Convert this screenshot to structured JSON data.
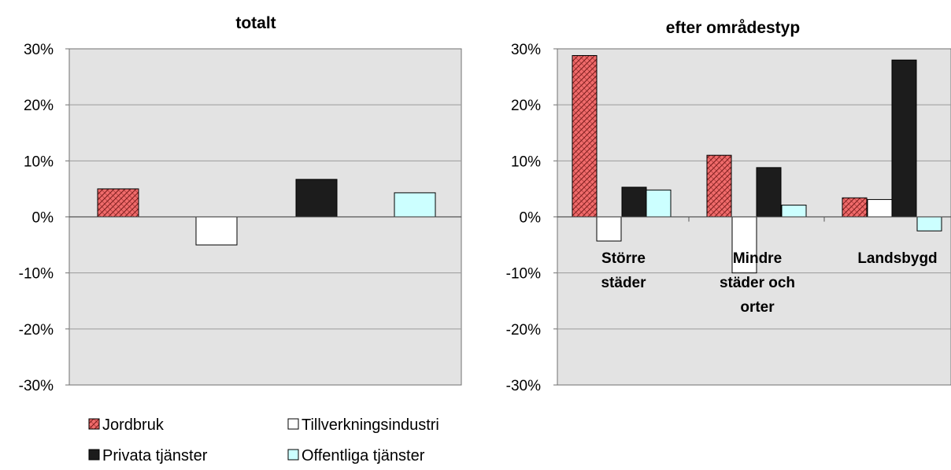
{
  "chart_data": [
    {
      "type": "bar",
      "title": "totalt",
      "categories": [
        ""
      ],
      "series": [
        {
          "name": "Jordbruk",
          "values": [
            5.0
          ]
        },
        {
          "name": "Tillverkningsindustri",
          "values": [
            -5.0
          ]
        },
        {
          "name": "Privata tjänster",
          "values": [
            6.7
          ]
        },
        {
          "name": "Offentliga tjänster",
          "values": [
            4.3
          ]
        }
      ],
      "ylim": [
        -30,
        30
      ],
      "yticks": [
        "30%",
        "20%",
        "10%",
        "0%",
        "-10%",
        "-20%",
        "-30%"
      ],
      "grid": true,
      "legend": "bottom"
    },
    {
      "type": "bar",
      "title": "efter områdestyp",
      "categories": [
        [
          "Större",
          "städer"
        ],
        [
          "Mindre",
          "städer och",
          "orter"
        ],
        [
          "Landsbygd"
        ]
      ],
      "series": [
        {
          "name": "Jordbruk",
          "values": [
            28.8,
            11.0,
            3.4
          ]
        },
        {
          "name": "Tillverkningsindustri",
          "values": [
            -4.3,
            -10.0,
            3.1
          ]
        },
        {
          "name": "Privata tjänster",
          "values": [
            5.3,
            8.8,
            28.0
          ]
        },
        {
          "name": "Offentliga tjänster",
          "values": [
            4.8,
            2.1,
            -2.5
          ]
        }
      ],
      "ylim": [
        -30,
        30
      ],
      "yticks": [
        "30%",
        "20%",
        "10%",
        "0%",
        "-10%",
        "-20%",
        "-30%"
      ],
      "grid": true
    }
  ],
  "legend": {
    "items": [
      "Jordbruk",
      "Tillverkningsindustri",
      "Privata tjänster",
      "Offentliga tjänster"
    ]
  },
  "colors": {
    "jordbruk": "#f06b6b",
    "tillverkning": "#ffffff",
    "privata": "#1c1c1c",
    "offentliga": "#ccffff",
    "plot_bg": "#e3e3e3",
    "grid": "#9a9a9a"
  }
}
